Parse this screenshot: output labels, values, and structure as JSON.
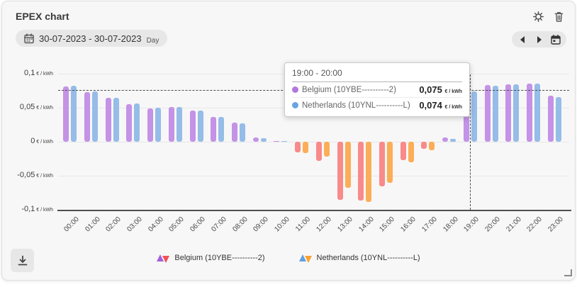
{
  "card": {
    "title": "EPEX chart"
  },
  "toolbar": {
    "date_range": "30-07-2023 - 30-07-2023",
    "period": "Day"
  },
  "icons": [
    "calendar-icon",
    "gear-icon",
    "trash-icon",
    "chevron-left-icon",
    "chevron-right-icon",
    "calendar-day-icon",
    "download-icon",
    "resize-handle"
  ],
  "tooltip": {
    "title": "19:00 - 20:00",
    "rows": [
      {
        "label": "Belgium (10YBE----------2)",
        "value": "0,075",
        "unit": "€ / kWh",
        "dot_color": "#b277de"
      },
      {
        "label": "Netherlands (10YNL----------L)",
        "value": "0,074",
        "unit": "€ / kWh",
        "dot_color": "#6aa3e3"
      }
    ]
  },
  "legend": [
    {
      "label": "Belgium (10YBE----------2)",
      "up_color": "#a35fd9",
      "down_color": "#f25158"
    },
    {
      "label": "Netherlands (10YNL----------L)",
      "up_color": "#60a0e3",
      "down_color": "#f9a232"
    }
  ],
  "chart_data": {
    "type": "bar",
    "title": "EPEX chart",
    "xlabel": "",
    "ylabel": "€ / kWh",
    "unit": "€ / kWh",
    "grid": true,
    "legend_position": "bottom",
    "ylim": [
      -0.1,
      0.1
    ],
    "yticks": [
      {
        "value": 0.1,
        "label": "0,1"
      },
      {
        "value": 0.05,
        "label": "0,05"
      },
      {
        "value": 0,
        "label": "0"
      },
      {
        "value": -0.05,
        "label": "-0,05"
      },
      {
        "value": -0.1,
        "label": "-0,1"
      }
    ],
    "categories": [
      "00:00",
      "01:00",
      "02:00",
      "03:00",
      "04:00",
      "05:00",
      "06:00",
      "07:00",
      "08:00",
      "09:00",
      "10:00",
      "11:00",
      "12:00",
      "13:00",
      "14:00",
      "15:00",
      "16:00",
      "17:00",
      "18:00",
      "19:00",
      "20:00",
      "21:00",
      "22:00",
      "23:00"
    ],
    "series": [
      {
        "id": "belgium",
        "name": "Belgium (10YBE----------2)",
        "color_positive": "#c492e6",
        "color_negative": "#f98a8a",
        "values": [
          0.081,
          0.073,
          0.065,
          0.055,
          0.049,
          0.051,
          0.046,
          0.036,
          0.028,
          0.006,
          0.001,
          -0.016,
          -0.028,
          -0.085,
          -0.086,
          -0.066,
          -0.027,
          -0.01,
          0.006,
          0.075,
          0.083,
          0.084,
          0.085,
          0.068
        ]
      },
      {
        "id": "netherlands",
        "name": "Netherlands (10YNL----------L)",
        "color_positive": "#96bce8",
        "color_negative": "#fbae57",
        "values": [
          0.082,
          0.074,
          0.065,
          0.056,
          0.05,
          0.051,
          0.046,
          0.036,
          0.027,
          0.005,
          0.001,
          -0.017,
          -0.022,
          -0.068,
          -0.089,
          -0.06,
          -0.03,
          -0.012,
          0.004,
          0.074,
          0.082,
          0.084,
          0.085,
          0.066
        ]
      }
    ],
    "crosshair": {
      "category_index": 19,
      "value": 0.075
    }
  }
}
